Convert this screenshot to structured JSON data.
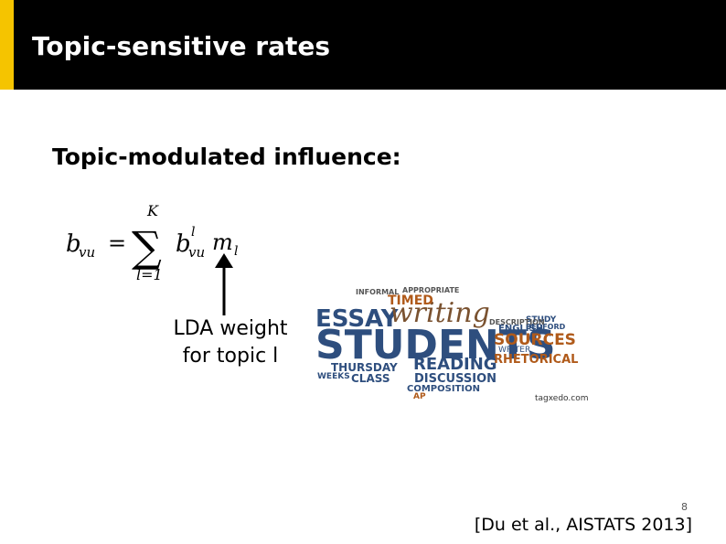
{
  "header": {
    "title": "Topic-sensitive rates"
  },
  "body": {
    "heading": "Topic-modulated influence:",
    "formula": {
      "lhs": "b",
      "lhs_sub": "vu",
      "equals": "=",
      "sum": "∑",
      "upper": "K",
      "lower": "l=1",
      "term": "b",
      "term_sup": "l",
      "term_sub": "vu",
      "weight": "m",
      "weight_sub": "l"
    },
    "arrow_label": [
      "LDA weight",
      "for topic l"
    ],
    "word_cloud": {
      "words": [
        "STUDENTS",
        "ESSAY",
        "writing",
        "TIMED",
        "INFORMAL",
        "APPROPRIATE",
        "SOURCES",
        "RHETORICAL",
        "READING",
        "THURSDAY",
        "CLASS",
        "WEEKS",
        "DISCUSSION",
        "COMPOSITION",
        "ENGLISH",
        "WRITER",
        "STUDY",
        "BEDFORD",
        "DESCRIPTION",
        "AP"
      ],
      "credit": "tagxedo.com"
    }
  },
  "footer": {
    "page_number": "8",
    "citation": "[Du et al., AISTATS 2013]"
  }
}
